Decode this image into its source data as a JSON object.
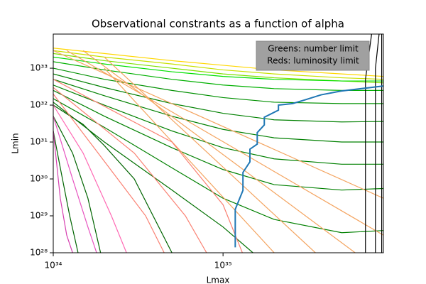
{
  "chart_data": {
    "type": "line",
    "title": "Observational constrants as a function of alpha",
    "x_label": "Lmax",
    "y_label": "Lmin",
    "xscale": "log",
    "yscale": "log",
    "xlim": [
      1e+34,
      8.8e+35
    ],
    "ylim": [
      1e+28,
      8.4e+33
    ],
    "xticks": [
      {
        "value": 1e+34,
        "label": "10³⁴"
      },
      {
        "value": 1e+35,
        "label": "10³⁵"
      }
    ],
    "yticks": [
      {
        "value": 1e+28,
        "label": "10²⁸"
      },
      {
        "value": 1e+29,
        "label": "10²⁹"
      },
      {
        "value": 1e+30,
        "label": "10³⁰"
      },
      {
        "value": 1e+31,
        "label": "10³¹"
      },
      {
        "value": 1e+32,
        "label": "10³²"
      },
      {
        "value": 1e+33,
        "label": "10³³"
      }
    ],
    "annotation": [
      "Greens: number limit",
      "Reds: luminosity limit"
    ],
    "series": [
      {
        "color": "#ffd700",
        "x": [
          1e+34,
          2e+34,
          5e+34,
          1e+35,
          2e+35,
          5e+35,
          8.8e+35
        ],
        "values": [
          3.5e+33,
          2.5e+33,
          1.6e+33,
          1.2e+33,
          9e+32,
          7e+32,
          6e+32
        ]
      },
      {
        "color": "#c8e000",
        "x": [
          1e+34,
          2e+34,
          5e+34,
          1e+35,
          2e+35,
          5e+35,
          8.8e+35
        ],
        "values": [
          3e+33,
          2e+33,
          1.3e+33,
          9e+32,
          7e+32,
          5.5e+32,
          5e+32
        ]
      },
      {
        "color": "#7fe000",
        "x": [
          1e+34,
          2e+34,
          5e+34,
          1e+35,
          2e+35,
          5e+35,
          8.8e+35
        ],
        "values": [
          2.5e+33,
          1.6e+33,
          1e+33,
          7e+32,
          5.5e+32,
          4.5e+32,
          4e+32
        ]
      },
      {
        "color": "#00e000",
        "x": [
          1e+34,
          2e+34,
          5e+34,
          1e+35,
          2e+35,
          5e+35,
          8.8e+35
        ],
        "values": [
          2e+33,
          1.3e+33,
          8e+32,
          6e+32,
          5e+32,
          4.5e+32,
          4.5e+32
        ]
      },
      {
        "color": "#00b000",
        "x": [
          1e+34,
          2e+34,
          5e+34,
          1e+35,
          2e+35,
          5e+35,
          8.8e+35
        ],
        "values": [
          1.5e+33,
          9e+32,
          5e+32,
          3.5e+32,
          2.8e+32,
          2.5e+32,
          2.5e+32
        ]
      },
      {
        "color": "#009000",
        "x": [
          1e+34,
          2e+34,
          5e+34,
          1e+35,
          2e+35,
          5e+35,
          8.8e+35
        ],
        "values": [
          1e+33,
          5e+32,
          2.5e+32,
          1.6e+32,
          1.2e+32,
          1.1e+32,
          1.1e+32
        ]
      },
      {
        "color": "#008000",
        "x": [
          1e+34,
          2e+34,
          5e+34,
          1e+35,
          2e+35,
          5e+35,
          8.8e+35
        ],
        "values": [
          7e+32,
          3e+32,
          1.1e+32,
          6e+31,
          4e+31,
          3.5e+31,
          3.6e+31
        ]
      },
      {
        "color": "#008000",
        "x": [
          1e+34,
          2e+34,
          5e+34,
          1e+35,
          2e+35,
          5e+35,
          8.8e+35
        ],
        "values": [
          5e+32,
          1.8e+32,
          5e+31,
          2.2e+31,
          1.3e+31,
          1e+31,
          1e+31
        ]
      },
      {
        "color": "#008000",
        "x": [
          1e+34,
          2e+34,
          5e+34,
          1e+35,
          2e+35,
          5e+35,
          8.8e+35
        ],
        "values": [
          3.5e+32,
          1e+32,
          2e+31,
          7e+30,
          3.5e+30,
          2.5e+30,
          2.5e+30
        ]
      },
      {
        "color": "#008000",
        "x": [
          1e+34,
          2e+34,
          5e+34,
          1e+35,
          2e+35,
          5e+35,
          8.8e+35
        ],
        "values": [
          2.5e+32,
          5e+31,
          7e+30,
          1.8e+30,
          7e+29,
          5e+29,
          5.5e+29
        ]
      },
      {
        "color": "#008000",
        "x": [
          1e+34,
          2e+34,
          5e+34,
          1e+35,
          2e+35,
          5e+35,
          8.8e+35
        ],
        "values": [
          1.5e+32,
          2.5e+31,
          2e+30,
          3e+29,
          8e+28,
          3.5e+28,
          4e+28
        ]
      },
      {
        "color": "#007000",
        "x": [
          1e+34,
          2e+34,
          5e+34,
          1e+35,
          1.5e+35
        ],
        "values": [
          1.2e+32,
          1e+31,
          5e+29,
          5e+28,
          1e+28
        ]
      },
      {
        "color": "#006400",
        "x": [
          1e+34,
          1.5e+34,
          2e+34,
          3e+34,
          5e+34
        ],
        "values": [
          1e+32,
          3e+31,
          8e+30,
          1e+30,
          1e+28
        ]
      },
      {
        "color": "#006400",
        "x": [
          1e+34,
          1.3e+34,
          1.6e+34,
          1.9e+34
        ],
        "values": [
          5e+31,
          5e+30,
          3e+29,
          1e+28
        ]
      },
      {
        "color": "#006400",
        "x": [
          1e+34,
          1.1e+34,
          1.25e+34,
          1.4e+34
        ],
        "values": [
          2e+31,
          2e+30,
          1e+29,
          1e+28
        ]
      },
      {
        "color": "#f4a460",
        "x": [
          1e+34,
          8.8e+35
        ],
        "values": [
          3e+33,
          3e+29
        ]
      },
      {
        "color": "#f4a460",
        "x": [
          1.2e+34,
          8.8e+35
        ],
        "values": [
          3e+33,
          3e+28
        ]
      },
      {
        "color": "#f4a460",
        "x": [
          1.5e+34,
          6e+35
        ],
        "values": [
          3e+33,
          1e+28
        ]
      },
      {
        "color": "#f4a460",
        "x": [
          2e+34,
          3.5e+35
        ],
        "values": [
          2e+33,
          1e+28
        ]
      },
      {
        "color": "#f4a460",
        "x": [
          2e+34,
          2e+35
        ],
        "values": [
          1e+33,
          1e+28
        ]
      },
      {
        "color": "#fa8072",
        "x": [
          1e+34,
          5e+34,
          1e+35,
          1.3e+35
        ],
        "values": [
          5e+32,
          1e+31,
          2e+29,
          1e+28
        ]
      },
      {
        "color": "#fa8072",
        "x": [
          1e+34,
          3e+34,
          6e+34,
          8e+34
        ],
        "values": [
          3e+32,
          5e+30,
          1e+29,
          1e+28
        ]
      },
      {
        "color": "#fa8072",
        "x": [
          1e+34,
          2e+34,
          3.5e+34,
          4.5e+34
        ],
        "values": [
          2e+32,
          3e+30,
          1e+29,
          1e+28
        ]
      },
      {
        "color": "#ff69b4",
        "x": [
          1e+34,
          1.5e+34,
          2.2e+34,
          2.7e+34
        ],
        "values": [
          1e+32,
          5e+30,
          1e+29,
          1e+28
        ]
      },
      {
        "color": "#e754c0",
        "x": [
          1e+34,
          1.3e+34,
          1.6e+34,
          1.8e+34
        ],
        "values": [
          5e+31,
          1e+30,
          5e+28,
          1e+28
        ]
      },
      {
        "color": "#d63fb0",
        "x": [
          1e+34,
          1.1e+34,
          1.2e+34,
          1.3e+34
        ],
        "values": [
          2e+31,
          3e+29,
          3e+28,
          1e+28
        ]
      },
      {
        "color": "#000000",
        "x": [
          6.9e+35,
          6.9e+35,
          7.5e+35
        ],
        "values": [
          1e+28,
          5e+32,
          8.4e+33
        ]
      },
      {
        "color": "#000000",
        "x": [
          7.9e+35,
          7.9e+35,
          8.3e+35
        ],
        "values": [
          1e+28,
          1e+33,
          8.4e+33
        ]
      },
      {
        "color": "#000000",
        "x": [
          8.6e+35,
          8.6e+35
        ],
        "values": [
          1e+28,
          8.4e+33
        ]
      },
      {
        "color": "#1f77b4",
        "width": 2,
        "x": [
          1.18e+35,
          1.18e+35,
          1.31e+35,
          1.31e+35,
          1.44e+35,
          1.44e+35,
          1.59e+35,
          1.59e+35,
          1.75e+35,
          1.75e+35,
          2.12e+35,
          2.12e+35,
          2.57e+35,
          3.06e+35,
          3.78e+35,
          4.95e+35,
          8.8e+35
        ],
        "values": [
          1.4e+28,
          1.5e+29,
          4.9e+29,
          1.5e+30,
          2.9e+30,
          6.4e+30,
          8.8e+30,
          1.8e+31,
          2.9e+31,
          4.7e+31,
          7.3e+31,
          1e+32,
          1.1e+32,
          1.4e+32,
          1.9e+32,
          2.4e+32,
          3.3e+32
        ]
      }
    ]
  }
}
